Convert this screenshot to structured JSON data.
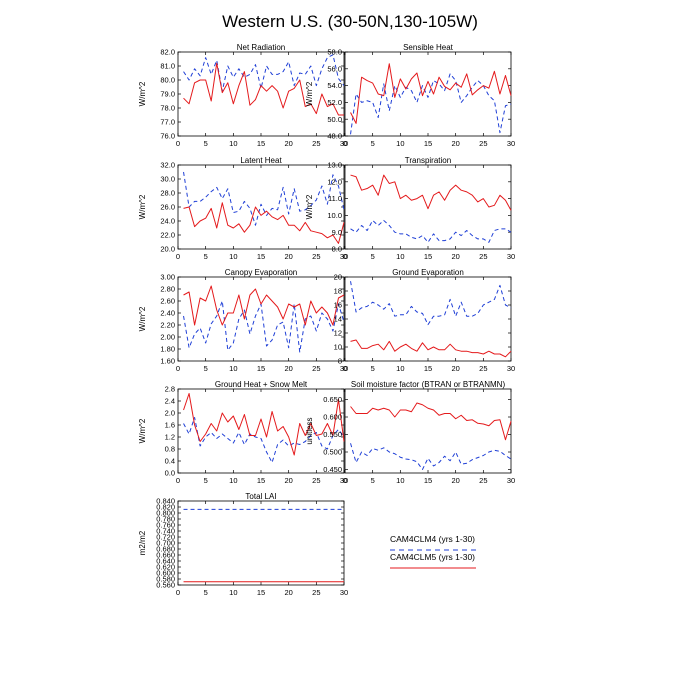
{
  "figure_title": "Western U.S. (30-50N,130-105W)",
  "colors": {
    "clm4": "#1f3fd6",
    "clm5": "#e41a1c",
    "axis": "#000000"
  },
  "legend": {
    "entries": [
      {
        "label": "CAM4CLM4 (yrs 1-30)",
        "style": "dashed",
        "color": "#1f3fd6"
      },
      {
        "label": "CAM4CLM5 (yrs 1-30)",
        "style": "solid",
        "color": "#e41a1c"
      }
    ]
  },
  "chart_data": [
    {
      "type": "line",
      "title": "Net Radiation",
      "ylabel": "W/m^2",
      "xlim": [
        0,
        30
      ],
      "ylim": [
        76.0,
        82.0
      ],
      "xticks": [
        "0",
        "5",
        "10",
        "15",
        "20",
        "25",
        "30"
      ],
      "yticks": [
        "76.0",
        "77.0",
        "78.0",
        "79.0",
        "80.0",
        "81.0",
        "82.0"
      ],
      "x": [
        1,
        2,
        3,
        4,
        5,
        6,
        7,
        8,
        9,
        10,
        11,
        12,
        13,
        14,
        15,
        16,
        17,
        18,
        19,
        20,
        21,
        22,
        23,
        24,
        25,
        26,
        27,
        28,
        29,
        30
      ],
      "series": [
        {
          "name": "CAM4CLM4 (yrs 1-30)",
          "values": [
            80.6,
            80.0,
            80.8,
            80.3,
            81.6,
            80.4,
            81.4,
            79.2,
            81.0,
            80.2,
            80.8,
            80.2,
            80.4,
            81.1,
            79.4,
            81.0,
            80.4,
            80.4,
            80.6,
            81.3,
            79.6,
            80.5,
            80.4,
            81.0,
            79.6,
            80.8,
            81.6,
            81.8,
            80.1,
            79.6
          ]
        },
        {
          "name": "CAM4CLM5 (yrs 1-30)",
          "values": [
            78.7,
            78.3,
            79.8,
            80.0,
            80.0,
            78.5,
            81.2,
            79.1,
            79.8,
            78.3,
            79.6,
            80.6,
            78.2,
            78.6,
            79.6,
            79.2,
            79.6,
            79.2,
            78.0,
            79.2,
            79.4,
            80.0,
            78.1,
            78.3,
            77.6,
            79.0,
            78.1,
            78.3,
            77.5,
            77.5
          ]
        }
      ]
    },
    {
      "type": "line",
      "title": "Sensible Heat",
      "ylabel": "W/m^2",
      "xlim": [
        0,
        30
      ],
      "ylim": [
        48.0,
        58.0
      ],
      "xticks": [
        "0",
        "5",
        "10",
        "15",
        "20",
        "25",
        "30"
      ],
      "yticks": [
        "48.0",
        "50.0",
        "52.0",
        "54.0",
        "56.0",
        "58.0"
      ],
      "x": [
        1,
        2,
        3,
        4,
        5,
        6,
        7,
        8,
        9,
        10,
        11,
        12,
        13,
        14,
        15,
        16,
        17,
        18,
        19,
        20,
        21,
        22,
        23,
        24,
        25,
        26,
        27,
        28,
        29,
        30
      ],
      "series": [
        {
          "name": "CAM4CLM4 (yrs 1-30)",
          "values": [
            48.2,
            53.0,
            52.0,
            52.2,
            52.0,
            50.2,
            54.2,
            51.0,
            54.0,
            52.6,
            53.8,
            53.4,
            52.0,
            54.0,
            52.6,
            54.6,
            54.2,
            53.4,
            55.4,
            54.6,
            52.0,
            52.8,
            53.8,
            54.6,
            54.0,
            52.8,
            52.2,
            48.4,
            51.6,
            51.8
          ]
        },
        {
          "name": "CAM4CLM5 (yrs 1-30)",
          "values": [
            50.8,
            49.5,
            55.0,
            54.6,
            54.3,
            53.0,
            52.8,
            56.6,
            52.6,
            54.8,
            53.6,
            54.8,
            55.5,
            52.8,
            54.5,
            53.0,
            55.0,
            53.9,
            53.5,
            54.3,
            53.8,
            55.4,
            52.9,
            53.5,
            54.0,
            53.7,
            55.7,
            53.0,
            55.2,
            52.8
          ]
        }
      ]
    },
    {
      "type": "line",
      "title": "Latent Heat",
      "ylabel": "W/m^2",
      "xlim": [
        0,
        30
      ],
      "ylim": [
        20.0,
        32.0
      ],
      "xticks": [
        "0",
        "5",
        "10",
        "15",
        "20",
        "25",
        "30"
      ],
      "yticks": [
        "20.0",
        "22.0",
        "24.0",
        "26.0",
        "28.0",
        "30.0",
        "32.0"
      ],
      "x": [
        1,
        2,
        3,
        4,
        5,
        6,
        7,
        8,
        9,
        10,
        11,
        12,
        13,
        14,
        15,
        16,
        17,
        18,
        19,
        20,
        21,
        22,
        23,
        24,
        25,
        26,
        27,
        28,
        29,
        30
      ],
      "series": [
        {
          "name": "CAM4CLM4 (yrs 1-30)",
          "values": [
            31.0,
            26.0,
            26.8,
            26.8,
            27.4,
            28.2,
            28.8,
            27.2,
            28.6,
            25.2,
            25.4,
            26.8,
            25.8,
            23.4,
            26.4,
            24.8,
            25.8,
            25.6,
            28.8,
            25.0,
            28.6,
            25.4,
            25.6,
            26.2,
            27.0,
            29.0,
            26.4,
            30.6,
            29.0,
            25.6
          ]
        },
        {
          "name": "CAM4CLM5 (yrs 1-30)",
          "values": [
            25.8,
            26.0,
            23.2,
            24.0,
            24.4,
            25.8,
            23.0,
            26.6,
            23.4,
            23.0,
            23.6,
            22.4,
            23.4,
            26.0,
            24.8,
            25.4,
            24.6,
            24.2,
            24.8,
            23.4,
            23.4,
            22.6,
            23.8,
            22.6,
            22.4,
            22.2,
            21.6,
            22.0,
            20.8,
            23.8
          ]
        }
      ]
    },
    {
      "type": "line",
      "title": "Transpiration",
      "ylabel": "W/m^2",
      "xlim": [
        0,
        30
      ],
      "ylim": [
        8.0,
        13.0
      ],
      "xticks": [
        "0",
        "5",
        "10",
        "15",
        "20",
        "25",
        "30"
      ],
      "yticks": [
        "8.0",
        "9.0",
        "10.0",
        "11.0",
        "12.0",
        "13.0"
      ],
      "x": [
        1,
        2,
        3,
        4,
        5,
        6,
        7,
        8,
        9,
        10,
        11,
        12,
        13,
        14,
        15,
        16,
        17,
        18,
        19,
        20,
        21,
        22,
        23,
        24,
        25,
        26,
        27,
        28,
        29,
        30
      ],
      "series": [
        {
          "name": "CAM4CLM4 (yrs 1-30)",
          "values": [
            9.2,
            9.0,
            9.4,
            9.1,
            9.7,
            9.4,
            9.7,
            9.4,
            9.0,
            8.9,
            8.9,
            8.7,
            8.6,
            8.8,
            8.4,
            8.9,
            8.5,
            8.5,
            8.6,
            9.0,
            8.8,
            9.1,
            8.8,
            8.6,
            8.6,
            8.4,
            9.1,
            9.2,
            9.2,
            9.0
          ]
        },
        {
          "name": "CAM4CLM5 (yrs 1-30)",
          "values": [
            12.4,
            12.3,
            11.5,
            11.6,
            11.8,
            11.2,
            12.4,
            11.9,
            12.0,
            11.0,
            11.2,
            10.9,
            11.0,
            11.2,
            10.4,
            11.2,
            11.4,
            10.9,
            11.5,
            11.8,
            11.5,
            11.4,
            11.2,
            10.8,
            11.0,
            10.5,
            10.6,
            11.2,
            10.9,
            10.3
          ]
        }
      ]
    },
    {
      "type": "line",
      "title": "Canopy Evaporation",
      "ylabel": "W/m^2",
      "xlim": [
        0,
        30
      ],
      "ylim": [
        1.6,
        3.0
      ],
      "xticks": [
        "0",
        "5",
        "10",
        "15",
        "20",
        "25",
        "30"
      ],
      "yticks": [
        "1.60",
        "1.80",
        "2.00",
        "2.20",
        "2.40",
        "2.60",
        "2.80",
        "3.00"
      ],
      "x": [
        1,
        2,
        3,
        4,
        5,
        6,
        7,
        8,
        9,
        10,
        11,
        12,
        13,
        14,
        15,
        16,
        17,
        18,
        19,
        20,
        21,
        22,
        23,
        24,
        25,
        26,
        27,
        28,
        29,
        30
      ],
      "series": [
        {
          "name": "CAM4CLM4 (yrs 1-30)",
          "values": [
            2.35,
            1.82,
            2.05,
            2.15,
            1.9,
            2.22,
            2.35,
            2.6,
            1.78,
            1.9,
            2.3,
            2.45,
            2.05,
            2.35,
            2.55,
            1.85,
            1.95,
            2.2,
            2.25,
            1.82,
            2.55,
            1.75,
            2.3,
            2.35,
            2.1,
            2.4,
            2.3,
            2.1,
            2.55,
            2.25
          ]
        },
        {
          "name": "CAM4CLM5 (yrs 1-30)",
          "values": [
            2.7,
            2.75,
            2.2,
            2.65,
            2.6,
            2.85,
            2.45,
            2.2,
            2.4,
            2.4,
            2.7,
            2.3,
            2.7,
            2.8,
            2.55,
            2.7,
            2.6,
            2.5,
            2.3,
            2.55,
            2.5,
            2.55,
            2.2,
            2.6,
            2.4,
            2.5,
            2.4,
            2.2,
            2.65,
            2.7
          ]
        }
      ]
    },
    {
      "type": "line",
      "title": "Ground Evaporation",
      "ylabel": "",
      "xlim": [
        0,
        30
      ],
      "ylim": [
        8,
        20
      ],
      "xticks": [
        "0",
        "5",
        "10",
        "15",
        "20",
        "25",
        "30"
      ],
      "yticks": [
        "8",
        "10",
        "12",
        "14",
        "16",
        "18",
        "20"
      ],
      "x": [
        1,
        2,
        3,
        4,
        5,
        6,
        7,
        8,
        9,
        10,
        11,
        12,
        13,
        14,
        15,
        16,
        17,
        18,
        19,
        20,
        21,
        22,
        23,
        24,
        25,
        26,
        27,
        28,
        29,
        30
      ],
      "series": [
        {
          "name": "CAM4CLM4 (yrs 1-30)",
          "values": [
            19.4,
            15.0,
            15.6,
            15.8,
            16.4,
            16.0,
            15.4,
            16.2,
            14.4,
            14.6,
            14.6,
            15.8,
            15.0,
            14.8,
            13.2,
            14.4,
            14.4,
            14.6,
            16.8,
            14.4,
            16.4,
            14.4,
            14.4,
            14.8,
            16.0,
            16.4,
            16.8,
            18.8,
            16.0,
            15.6
          ]
        },
        {
          "name": "CAM4CLM5 (yrs 1-30)",
          "values": [
            10.8,
            11.0,
            9.8,
            9.8,
            10.2,
            10.4,
            9.6,
            10.8,
            9.4,
            10.0,
            10.4,
            9.8,
            9.4,
            10.6,
            9.6,
            10.0,
            9.6,
            9.6,
            10.4,
            9.6,
            9.4,
            9.4,
            9.2,
            9.2,
            9.0,
            9.4,
            9.0,
            9.0,
            8.6,
            9.4
          ]
        }
      ]
    },
    {
      "type": "line",
      "title": "Ground Heat + Snow Melt",
      "ylabel": "W/m^2",
      "xlim": [
        0,
        30
      ],
      "ylim": [
        0.0,
        2.8
      ],
      "xticks": [
        "0",
        "5",
        "10",
        "15",
        "20",
        "25",
        "30"
      ],
      "yticks": [
        "0.0",
        "0.4",
        "0.8",
        "1.2",
        "1.6",
        "2.0",
        "2.4",
        "2.8"
      ],
      "x": [
        1,
        2,
        3,
        4,
        5,
        6,
        7,
        8,
        9,
        10,
        11,
        12,
        13,
        14,
        15,
        16,
        17,
        18,
        19,
        20,
        21,
        22,
        23,
        24,
        25,
        26,
        27,
        28,
        29,
        30
      ],
      "series": [
        {
          "name": "CAM4CLM4 (yrs 1-30)",
          "values": [
            1.65,
            1.3,
            1.85,
            0.9,
            1.2,
            1.35,
            1.15,
            1.3,
            1.15,
            1.0,
            1.35,
            0.95,
            1.3,
            1.2,
            1.15,
            0.7,
            0.35,
            0.95,
            1.1,
            0.9,
            1.0,
            0.95,
            1.05,
            1.25,
            1.35,
            0.9,
            0.8,
            1.25,
            1.45,
            1.2
          ]
        },
        {
          "name": "CAM4CLM5 (yrs 1-30)",
          "values": [
            2.1,
            2.65,
            1.6,
            1.05,
            1.3,
            1.65,
            1.4,
            2.0,
            1.7,
            1.9,
            1.45,
            1.95,
            1.25,
            1.25,
            1.8,
            1.2,
            2.05,
            1.4,
            1.55,
            1.2,
            0.6,
            1.65,
            1.25,
            1.65,
            1.25,
            1.3,
            1.65,
            1.25,
            2.45,
            1.05
          ]
        }
      ]
    },
    {
      "type": "line",
      "title": "Soil moisture factor (BTRAN or BTRANMN)",
      "ylabel": "unitless",
      "xlim": [
        0,
        30
      ],
      "ylim": [
        0.44,
        0.68
      ],
      "xticks": [
        "0",
        "5",
        "10",
        "15",
        "20",
        "25",
        "30"
      ],
      "yticks": [
        "0.450",
        "0.500",
        "0.550",
        "0.600",
        "0.650"
      ],
      "x": [
        1,
        2,
        3,
        4,
        5,
        6,
        7,
        8,
        9,
        10,
        11,
        12,
        13,
        14,
        15,
        16,
        17,
        18,
        19,
        20,
        21,
        22,
        23,
        24,
        25,
        26,
        27,
        28,
        29,
        30
      ],
      "series": [
        {
          "name": "CAM4CLM4 (yrs 1-30)",
          "values": [
            0.525,
            0.47,
            0.5,
            0.49,
            0.51,
            0.505,
            0.512,
            0.5,
            0.495,
            0.485,
            0.48,
            0.478,
            0.472,
            0.45,
            0.482,
            0.46,
            0.47,
            0.488,
            0.475,
            0.5,
            0.465,
            0.468,
            0.478,
            0.484,
            0.49,
            0.5,
            0.505,
            0.502,
            0.49,
            0.48
          ]
        },
        {
          "name": "CAM4CLM5 (yrs 1-30)",
          "values": [
            0.63,
            0.61,
            0.61,
            0.61,
            0.625,
            0.62,
            0.625,
            0.62,
            0.6,
            0.62,
            0.62,
            0.615,
            0.64,
            0.635,
            0.625,
            0.62,
            0.605,
            0.61,
            0.61,
            0.595,
            0.605,
            0.59,
            0.592,
            0.582,
            0.58,
            0.575,
            0.59,
            0.592,
            0.535,
            0.588
          ]
        }
      ]
    },
    {
      "type": "line",
      "title": "Total LAI",
      "ylabel": "m2/m2",
      "xlim": [
        0,
        30
      ],
      "ylim": [
        0.56,
        0.84
      ],
      "xticks": [
        "0",
        "5",
        "10",
        "15",
        "20",
        "25",
        "30"
      ],
      "yticks": [
        "0.560",
        "0.580",
        "0.600",
        "0.620",
        "0.640",
        "0.660",
        "0.680",
        "0.700",
        "0.720",
        "0.740",
        "0.760",
        "0.780",
        "0.800",
        "0.820",
        "0.840"
      ],
      "x": [
        1,
        2,
        3,
        4,
        5,
        6,
        7,
        8,
        9,
        10,
        11,
        12,
        13,
        14,
        15,
        16,
        17,
        18,
        19,
        20,
        21,
        22,
        23,
        24,
        25,
        26,
        27,
        28,
        29,
        30
      ],
      "series": [
        {
          "name": "CAM4CLM4 (yrs 1-30)",
          "values": [
            0.812,
            0.812,
            0.812,
            0.812,
            0.812,
            0.812,
            0.812,
            0.812,
            0.812,
            0.812,
            0.812,
            0.812,
            0.812,
            0.812,
            0.812,
            0.812,
            0.812,
            0.812,
            0.812,
            0.812,
            0.812,
            0.812,
            0.812,
            0.812,
            0.812,
            0.812,
            0.812,
            0.812,
            0.812,
            0.812
          ]
        },
        {
          "name": "CAM4CLM5 (yrs 1-30)",
          "values": [
            0.571,
            0.571,
            0.571,
            0.571,
            0.571,
            0.571,
            0.571,
            0.571,
            0.571,
            0.571,
            0.571,
            0.571,
            0.571,
            0.571,
            0.571,
            0.571,
            0.571,
            0.571,
            0.571,
            0.571,
            0.571,
            0.571,
            0.571,
            0.571,
            0.571,
            0.571,
            0.571,
            0.571,
            0.571,
            0.571
          ]
        }
      ]
    }
  ]
}
